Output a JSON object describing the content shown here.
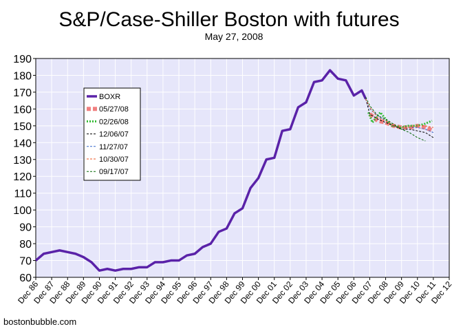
{
  "chart_data": {
    "type": "line",
    "title": "S&P/Case-Shiller Boston with futures",
    "subtitle": "May 27, 2008",
    "credit": "bostonbubble.com",
    "xlabel": "",
    "ylabel": "",
    "ylim": [
      60,
      190
    ],
    "y_ticks": [
      60,
      70,
      80,
      90,
      100,
      110,
      120,
      130,
      140,
      150,
      160,
      170,
      180,
      190
    ],
    "x_tick_labels": [
      "Dec 86",
      "Dec 87",
      "Dec 88",
      "Dec 89",
      "Dec 90",
      "Dec 91",
      "Dec 92",
      "Dec 93",
      "Dec 94",
      "Dec 95",
      "Dec 96",
      "Dec 97",
      "Dec 98",
      "Dec 99",
      "Dec 00",
      "Dec 01",
      "Dec 02",
      "Dec 03",
      "Dec 04",
      "Dec 05",
      "Dec 06",
      "Dec 07",
      "Dec 08",
      "Dec 09",
      "Dec 10",
      "Dec 11",
      "Dec 12"
    ],
    "grid": true,
    "legend_position": "upper-left inside plot",
    "colors": {
      "plot_background": "#e6e6fa",
      "grid": "#ffffff",
      "BOXR": "#5a22a8",
      "05/27/08": "#f08080",
      "02/26/08": "#33bb33",
      "12/06/07": "#000000",
      "11/27/07": "#3366cc",
      "10/30/07": "#ee5522",
      "09/17/07": "#006600"
    },
    "series": [
      {
        "name": "BOXR",
        "style": "solid-thick",
        "points": [
          [
            "Dec 86",
            70
          ],
          [
            "Jun 87",
            74
          ],
          [
            "Dec 87",
            75
          ],
          [
            "Jun 88",
            76
          ],
          [
            "Dec 88",
            75
          ],
          [
            "Jun 89",
            74
          ],
          [
            "Dec 89",
            72
          ],
          [
            "Jun 90",
            69
          ],
          [
            "Dec 90",
            64
          ],
          [
            "Jun 91",
            65
          ],
          [
            "Dec 91",
            64
          ],
          [
            "Jun 92",
            65
          ],
          [
            "Dec 92",
            65
          ],
          [
            "Jun 93",
            66
          ],
          [
            "Dec 93",
            66
          ],
          [
            "Jun 94",
            69
          ],
          [
            "Dec 94",
            69
          ],
          [
            "Jun 95",
            70
          ],
          [
            "Dec 95",
            70
          ],
          [
            "Jun 96",
            73
          ],
          [
            "Dec 96",
            74
          ],
          [
            "Jun 97",
            78
          ],
          [
            "Dec 97",
            80
          ],
          [
            "Jun 98",
            87
          ],
          [
            "Dec 98",
            89
          ],
          [
            "Jun 99",
            98
          ],
          [
            "Dec 99",
            101
          ],
          [
            "Jun 00",
            113
          ],
          [
            "Dec 00",
            119
          ],
          [
            "Jun 01",
            130
          ],
          [
            "Dec 01",
            131
          ],
          [
            "Jun 02",
            147
          ],
          [
            "Dec 02",
            148
          ],
          [
            "Jun 03",
            161
          ],
          [
            "Dec 03",
            164
          ],
          [
            "Jun 04",
            176
          ],
          [
            "Dec 04",
            177
          ],
          [
            "Jun 05",
            183
          ],
          [
            "Dec 05",
            178
          ],
          [
            "Jun 06",
            177
          ],
          [
            "Dec 06",
            168
          ],
          [
            "Jun 07",
            171
          ],
          [
            "Sep 07",
            166
          ]
        ]
      },
      {
        "name": "05/27/08",
        "style": "thick-dashed",
        "points": [
          [
            "Dec 07",
            157
          ],
          [
            "Jun 08",
            153
          ],
          [
            "Dec 08",
            152
          ],
          [
            "Jun 09",
            150
          ],
          [
            "Dec 09",
            149
          ],
          [
            "Jun 10",
            149
          ],
          [
            "Dec 10",
            150
          ],
          [
            "Jun 11",
            149
          ],
          [
            "Dec 11",
            147
          ]
        ]
      },
      {
        "name": "02/26/08",
        "style": "dotted",
        "points": [
          [
            "Nov 07",
            158
          ],
          [
            "Feb 08",
            152
          ],
          [
            "May 08",
            155
          ],
          [
            "Aug 08",
            158
          ],
          [
            "Nov 08",
            155
          ],
          [
            "Feb 09",
            152
          ],
          [
            "May 09",
            150
          ],
          [
            "Aug 09",
            150
          ],
          [
            "Nov 09",
            149
          ],
          [
            "May 10",
            150
          ],
          [
            "Nov 10",
            150
          ],
          [
            "May 11",
            151
          ],
          [
            "Nov 11",
            153
          ]
        ]
      },
      {
        "name": "12/06/07",
        "style": "dashed-thin",
        "points": [
          [
            "Sep 07",
            166
          ],
          [
            "Dec 07",
            157
          ],
          [
            "Jun 08",
            154
          ],
          [
            "Dec 08",
            152
          ],
          [
            "Jun 09",
            150
          ],
          [
            "Dec 09",
            148
          ],
          [
            "Jun 10",
            148
          ],
          [
            "Dec 10",
            147
          ],
          [
            "Jun 11",
            146
          ],
          [
            "Dec 11",
            143
          ]
        ]
      },
      {
        "name": "11/27/07",
        "style": "dashed-thin",
        "points": [
          [
            "Sep 07",
            166
          ],
          [
            "Dec 07",
            160
          ],
          [
            "Jun 08",
            156
          ],
          [
            "Dec 08",
            153
          ],
          [
            "Jun 09",
            150
          ],
          [
            "Dec 09",
            149
          ],
          [
            "Jun 10",
            149
          ],
          [
            "Dec 10",
            149
          ],
          [
            "Jun 11",
            148
          ],
          [
            "Dec 11",
            146
          ]
        ]
      },
      {
        "name": "10/30/07",
        "style": "dashed-thin",
        "points": [
          [
            "Sep 07",
            166
          ],
          [
            "Dec 07",
            161
          ],
          [
            "Jun 08",
            155
          ],
          [
            "Dec 08",
            153
          ],
          [
            "Jun 09",
            150
          ],
          [
            "Dec 09",
            149
          ],
          [
            "Jun 10",
            149
          ],
          [
            "Dec 10",
            150
          ],
          [
            "Jun 11",
            150
          ],
          [
            "Dec 11",
            149
          ]
        ]
      },
      {
        "name": "09/17/07",
        "style": "dashed-thin",
        "points": [
          [
            "Sep 07",
            167
          ],
          [
            "Dec 07",
            162
          ],
          [
            "Jun 08",
            156
          ],
          [
            "Dec 08",
            154
          ],
          [
            "Jun 09",
            151
          ],
          [
            "Dec 09",
            148
          ],
          [
            "Jun 10",
            146
          ],
          [
            "Dec 10",
            143
          ],
          [
            "Jun 11",
            141
          ]
        ]
      }
    ]
  }
}
